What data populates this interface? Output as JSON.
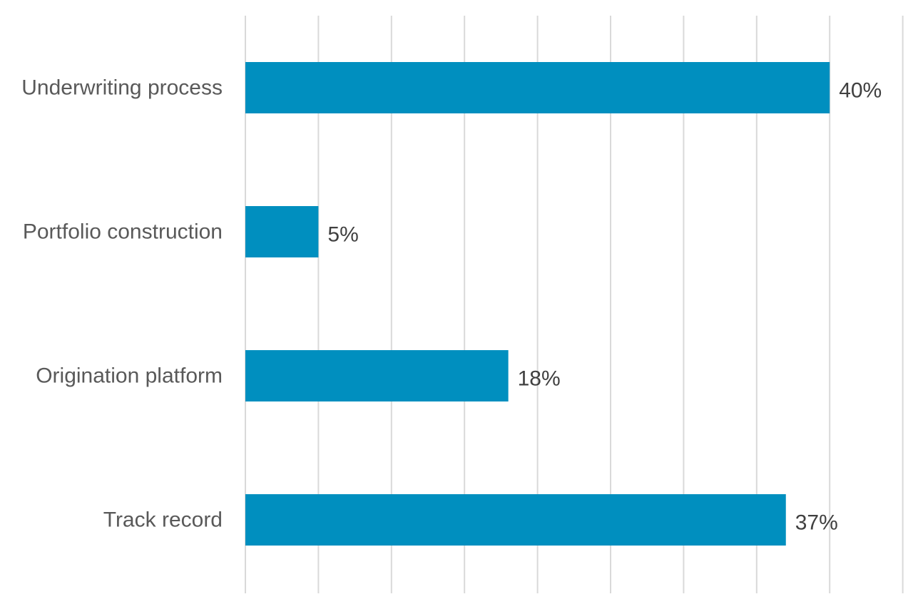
{
  "chart_data": {
    "type": "bar",
    "orientation": "horizontal",
    "categories": [
      "Underwriting process",
      "Portfolio construction",
      "Origination platform",
      "Track record"
    ],
    "values": [
      40,
      5,
      18,
      37
    ],
    "value_labels": [
      "40%",
      "5%",
      "18%",
      "37%"
    ],
    "unit": "%",
    "xlim": [
      0,
      45
    ],
    "grid": true,
    "bar_color": "#008fbf"
  }
}
